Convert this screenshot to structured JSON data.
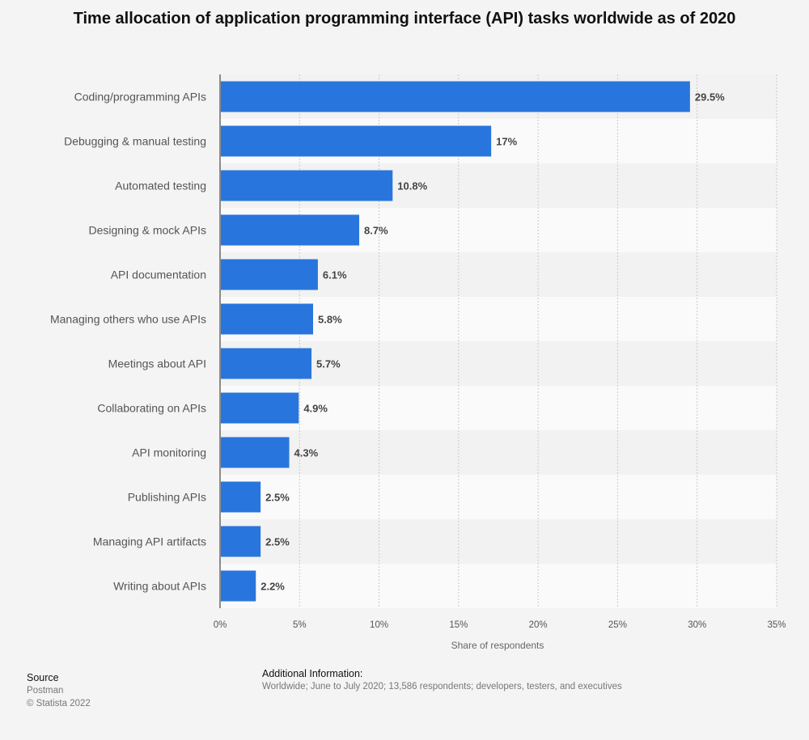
{
  "chart_data": {
    "type": "bar",
    "orientation": "horizontal",
    "title": "Time allocation of application programming interface (API) tasks worldwide as of 2020",
    "categories": [
      "Coding/programming APIs",
      "Debugging & manual testing",
      "Automated testing",
      "Designing & mock APIs",
      "API documentation",
      "Managing others who use APIs",
      "Meetings about API",
      "Collaborating on APIs",
      "API monitoring",
      "Publishing APIs",
      "Managing API artifacts",
      "Writing about APIs"
    ],
    "values": [
      29.5,
      17,
      10.8,
      8.7,
      6.1,
      5.8,
      5.7,
      4.9,
      4.3,
      2.5,
      2.5,
      2.2
    ],
    "value_labels": [
      "29.5%",
      "17%",
      "10.8%",
      "8.7%",
      "6.1%",
      "5.8%",
      "5.7%",
      "4.9%",
      "4.3%",
      "2.5%",
      "2.5%",
      "2.2%"
    ],
    "xlabel": "Share of respondents",
    "ylabel": "",
    "xlim": [
      0,
      35
    ],
    "xticks": [
      "0%",
      "5%",
      "10%",
      "15%",
      "20%",
      "25%",
      "30%",
      "35%"
    ],
    "grid": true,
    "legend": "none",
    "bar_color": "#2876dd"
  },
  "footer": {
    "source_heading": "Source",
    "source_name": "Postman",
    "copyright": "© Statista 2022",
    "info_heading": "Additional Information:",
    "info_text": "Worldwide; June to July 2020; 13,586 respondents; developers, testers, and executives"
  }
}
